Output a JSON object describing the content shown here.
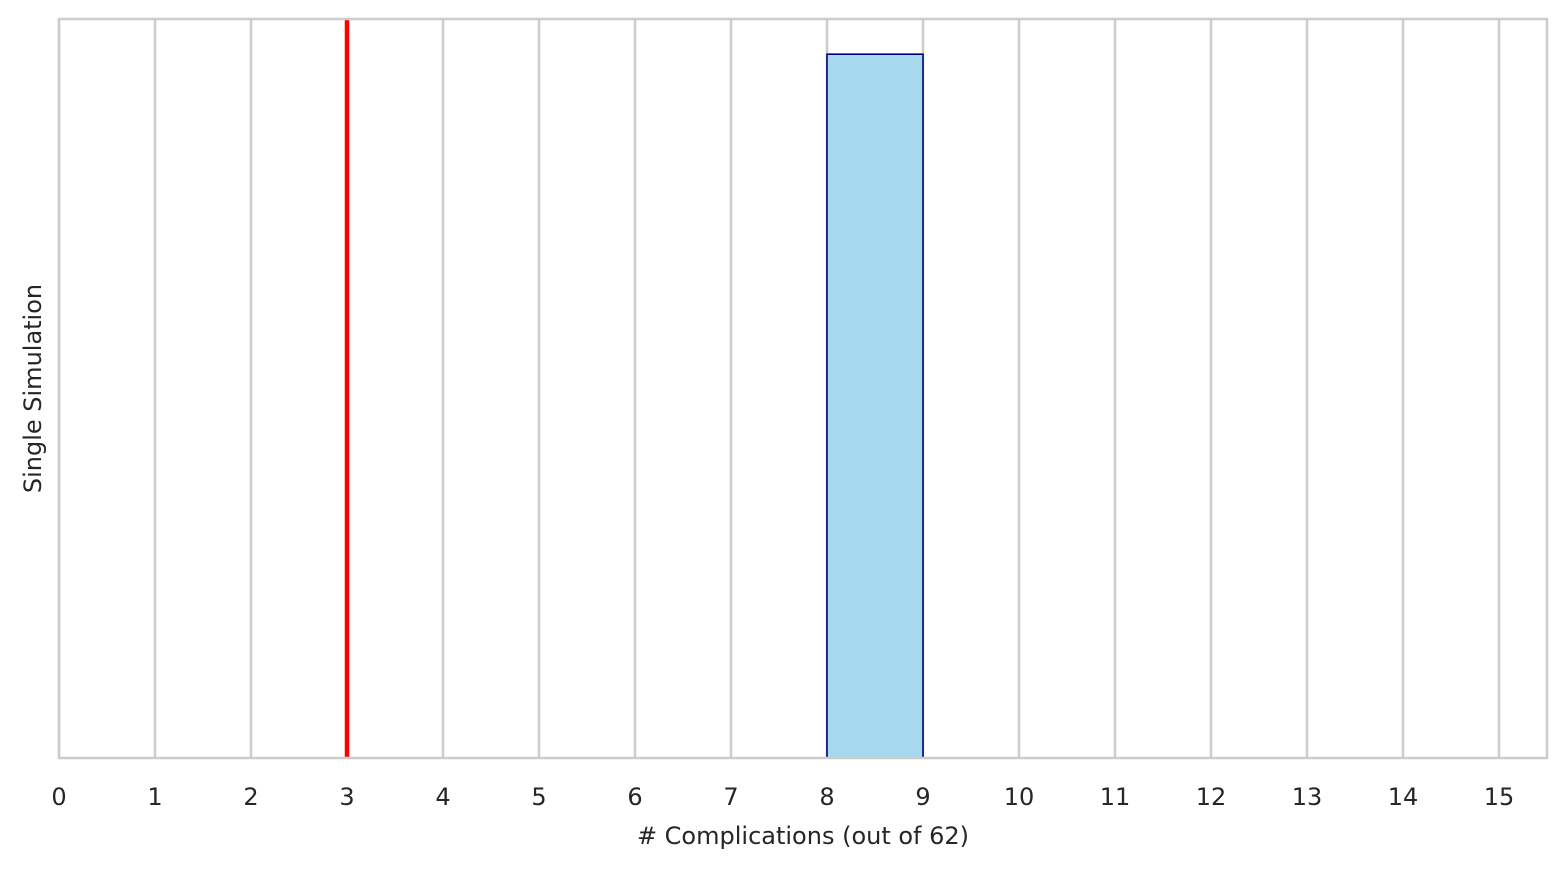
{
  "chart_data": {
    "type": "bar",
    "xlabel": "# Complications (out of 62)",
    "ylabel": "Single Simulation",
    "xlim": [
      0,
      15.5
    ],
    "xticks": [
      0,
      1,
      2,
      3,
      4,
      5,
      6,
      7,
      8,
      9,
      10,
      11,
      12,
      13,
      14,
      15
    ],
    "ylim": [
      0,
      1.05
    ],
    "y_ticks_shown": false,
    "grid": "vertical",
    "bars": [
      {
        "x_start": 8,
        "x_end": 9,
        "value": 1
      }
    ],
    "reference_lines": [
      {
        "x": 3,
        "color": "#ff0000"
      }
    ],
    "colors": {
      "bar_fill": "#a6d9ee",
      "bar_edge": "#000080",
      "reference_line": "#ff0000",
      "grid": "#cccccc",
      "axes_frame": "#cccccc"
    }
  }
}
